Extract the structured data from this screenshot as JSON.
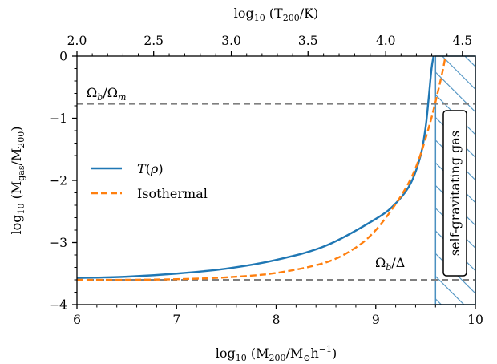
{
  "chart_data": {
    "type": "line",
    "xlabel": "log₁₀ (M₂₀₀/M⊙h⁻¹)",
    "ylabel": "log₁₀ (M_gas/M₂₀₀)",
    "top_xlabel": "log₁₀ (T₂₀₀/K)",
    "xlim": [
      6,
      10
    ],
    "ylim": [
      -4,
      0
    ],
    "x_ticks": [
      6,
      7,
      8,
      9,
      10
    ],
    "y_ticks": [
      0,
      -1,
      -2,
      -3,
      -4
    ],
    "x_tick_labels": [
      "6",
      "7",
      "8",
      "9",
      "10"
    ],
    "y_tick_labels": [
      "0",
      "−1",
      "−2",
      "−3",
      "−4"
    ],
    "top_ticks": [
      {
        "label": "2.0",
        "x": 6.0
      },
      {
        "label": "2.5",
        "x": 6.77
      },
      {
        "label": "3.0",
        "x": 7.55
      },
      {
        "label": "3.5",
        "x": 8.32
      },
      {
        "label": "4.0",
        "x": 9.1
      },
      {
        "label": "4.5",
        "x": 9.87
      }
    ],
    "series": [
      {
        "name": "T(ρ)",
        "color": "#1f77b4",
        "style": "solid",
        "x": [
          6.0,
          6.5,
          7.0,
          7.5,
          8.0,
          8.5,
          9.0,
          9.2,
          9.35,
          9.45,
          9.5,
          9.53,
          9.56,
          9.58
        ],
        "y": [
          -3.57,
          -3.55,
          -3.5,
          -3.42,
          -3.28,
          -3.05,
          -2.62,
          -2.37,
          -2.05,
          -1.6,
          -1.15,
          -0.7,
          -0.2,
          0.0
        ]
      },
      {
        "name": "Isothermal",
        "color": "#ff7f0e",
        "style": "dashed",
        "x": [
          6.0,
          6.5,
          7.0,
          7.5,
          8.0,
          8.5,
          8.8,
          9.0,
          9.2,
          9.35,
          9.45,
          9.55,
          9.62,
          9.67,
          9.7
        ],
        "y": [
          -3.6,
          -3.6,
          -3.59,
          -3.56,
          -3.49,
          -3.32,
          -3.08,
          -2.8,
          -2.38,
          -1.98,
          -1.58,
          -1.05,
          -0.6,
          -0.25,
          0.0
        ]
      }
    ],
    "hlines": [
      {
        "label": "Ω_b/Ω_m",
        "y": -0.77
      },
      {
        "label": "Ω_b/Δ",
        "y": -3.6
      }
    ],
    "hatched_region": {
      "x_from": 9.6,
      "x_to": 10.0,
      "label": "self-gravitating gas",
      "color": "#1f77b4"
    },
    "legend": {
      "placement": "center-left",
      "entries": [
        "T(ρ)",
        "Isothermal"
      ]
    },
    "grid": false
  }
}
